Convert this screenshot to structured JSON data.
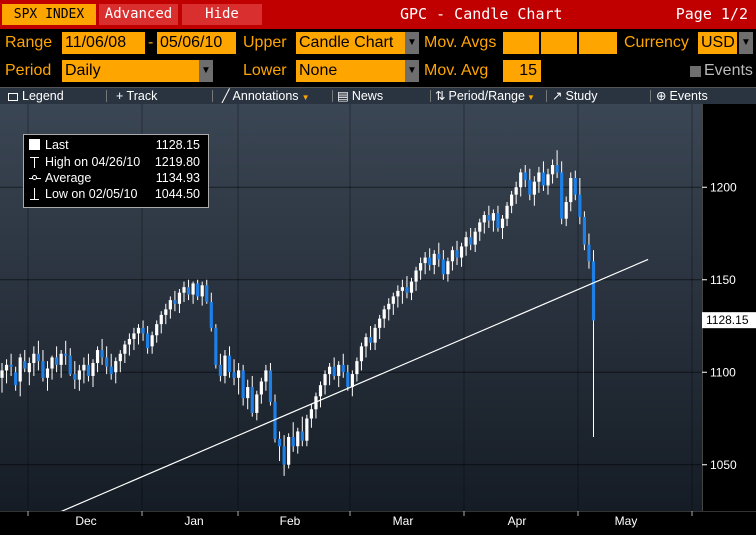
{
  "titlebar": {
    "ticker": "SPX INDEX",
    "advanced_label": "Advanced",
    "hide_label": "Hide",
    "chart_title": "GPC - Candle Chart",
    "page": "Page 1/2"
  },
  "settings": {
    "range_label": "Range",
    "range_start": "11/06/08",
    "range_dash": "-",
    "range_end": "05/06/10",
    "upper_label": "Upper",
    "upper_value": "Candle Chart",
    "mov_avgs_label": "Mov. Avgs",
    "currency_label": "Currency",
    "currency_value": "USD",
    "period_label": "Period",
    "period_value": "Daily",
    "lower_label": "Lower",
    "lower_value": "None",
    "mov_avg_label": "Mov. Avg",
    "mov_avg_value": "15",
    "events_label": "Events"
  },
  "toolbar": {
    "legend": "Legend",
    "track": "+ Track",
    "annotations": "Annotations",
    "news": "News",
    "period_range": "Period/Range",
    "study": "Study",
    "events": "Events"
  },
  "legend": {
    "last_label": "Last",
    "last_value": "1128.15",
    "high_label": "High on 04/26/10",
    "high_value": "1219.80",
    "avg_label": "Average",
    "avg_value": "1134.93",
    "low_label": "Low on 02/05/10",
    "low_value": "1044.50"
  },
  "colors": {
    "up_candle": "#ffffff",
    "down_candle": "#1e7fe6",
    "accent": "#ffa500",
    "titlebar": "#c00000"
  },
  "chart_data": {
    "type": "candlestick",
    "x_tick_labels": [
      "Dec",
      "Jan",
      "Feb",
      "Mar",
      "Apr",
      "May"
    ],
    "y_tick_labels": [
      "1050",
      "1100",
      "1150",
      "1200"
    ],
    "ylim": [
      1025,
      1245
    ],
    "last_price_label": "1128.15",
    "trendline": [
      [
        1,
        1011
      ],
      [
        143,
        1161
      ]
    ],
    "candles": [
      {
        "x": 1,
        "o": 1097,
        "h": 1105,
        "l": 1089,
        "c": 1101
      },
      {
        "x": 2,
        "o": 1101,
        "h": 1107,
        "l": 1094,
        "c": 1104
      },
      {
        "x": 3,
        "o": 1104,
        "h": 1110,
        "l": 1098,
        "c": 1103
      },
      {
        "x": 4,
        "o": 1100,
        "h": 1103,
        "l": 1090,
        "c": 1093
      },
      {
        "x": 5,
        "o": 1095,
        "h": 1110,
        "l": 1087,
        "c": 1108
      },
      {
        "x": 6,
        "o": 1106,
        "h": 1112,
        "l": 1100,
        "c": 1102
      },
      {
        "x": 7,
        "o": 1100,
        "h": 1108,
        "l": 1093,
        "c": 1105
      },
      {
        "x": 8,
        "o": 1105,
        "h": 1114,
        "l": 1098,
        "c": 1110
      },
      {
        "x": 9,
        "o": 1110,
        "h": 1117,
        "l": 1101,
        "c": 1106
      },
      {
        "x": 10,
        "o": 1106,
        "h": 1112,
        "l": 1095,
        "c": 1097
      },
      {
        "x": 11,
        "o": 1097,
        "h": 1106,
        "l": 1090,
        "c": 1102
      },
      {
        "x": 12,
        "o": 1102,
        "h": 1109,
        "l": 1096,
        "c": 1108
      },
      {
        "x": 13,
        "o": 1108,
        "h": 1114,
        "l": 1100,
        "c": 1104
      },
      {
        "x": 14,
        "o": 1104,
        "h": 1112,
        "l": 1097,
        "c": 1110
      },
      {
        "x": 15,
        "o": 1110,
        "h": 1117,
        "l": 1104,
        "c": 1109
      },
      {
        "x": 16,
        "o": 1109,
        "h": 1113,
        "l": 1098,
        "c": 1099
      },
      {
        "x": 17,
        "o": 1099,
        "h": 1106,
        "l": 1091,
        "c": 1096
      },
      {
        "x": 18,
        "o": 1096,
        "h": 1104,
        "l": 1090,
        "c": 1101
      },
      {
        "x": 19,
        "o": 1101,
        "h": 1108,
        "l": 1094,
        "c": 1104
      },
      {
        "x": 20,
        "o": 1104,
        "h": 1110,
        "l": 1095,
        "c": 1098
      },
      {
        "x": 21,
        "o": 1098,
        "h": 1107,
        "l": 1092,
        "c": 1105
      },
      {
        "x": 22,
        "o": 1105,
        "h": 1114,
        "l": 1100,
        "c": 1112
      },
      {
        "x": 23,
        "o": 1112,
        "h": 1118,
        "l": 1104,
        "c": 1108
      },
      {
        "x": 24,
        "o": 1108,
        "h": 1114,
        "l": 1099,
        "c": 1103
      },
      {
        "x": 25,
        "o": 1103,
        "h": 1110,
        "l": 1096,
        "c": 1099
      },
      {
        "x": 26,
        "o": 1100,
        "h": 1108,
        "l": 1094,
        "c": 1106
      },
      {
        "x": 27,
        "o": 1106,
        "h": 1112,
        "l": 1100,
        "c": 1110
      },
      {
        "x": 28,
        "o": 1110,
        "h": 1117,
        "l": 1105,
        "c": 1115
      },
      {
        "x": 29,
        "o": 1115,
        "h": 1121,
        "l": 1109,
        "c": 1118
      },
      {
        "x": 30,
        "o": 1118,
        "h": 1124,
        "l": 1112,
        "c": 1121
      },
      {
        "x": 31,
        "o": 1121,
        "h": 1126,
        "l": 1115,
        "c": 1124
      },
      {
        "x": 32,
        "o": 1124,
        "h": 1128,
        "l": 1117,
        "c": 1121
      },
      {
        "x": 33,
        "o": 1121,
        "h": 1125,
        "l": 1110,
        "c": 1113
      },
      {
        "x": 34,
        "o": 1114,
        "h": 1122,
        "l": 1110,
        "c": 1120
      },
      {
        "x": 35,
        "o": 1120,
        "h": 1128,
        "l": 1116,
        "c": 1126
      },
      {
        "x": 36,
        "o": 1126,
        "h": 1133,
        "l": 1121,
        "c": 1131
      },
      {
        "x": 37,
        "o": 1131,
        "h": 1137,
        "l": 1126,
        "c": 1134
      },
      {
        "x": 38,
        "o": 1134,
        "h": 1141,
        "l": 1129,
        "c": 1139
      },
      {
        "x": 39,
        "o": 1139,
        "h": 1144,
        "l": 1133,
        "c": 1137
      },
      {
        "x": 40,
        "o": 1137,
        "h": 1145,
        "l": 1132,
        "c": 1143
      },
      {
        "x": 41,
        "o": 1143,
        "h": 1149,
        "l": 1138,
        "c": 1146
      },
      {
        "x": 42,
        "o": 1146,
        "h": 1150,
        "l": 1139,
        "c": 1142
      },
      {
        "x": 43,
        "o": 1142,
        "h": 1149,
        "l": 1137,
        "c": 1148
      },
      {
        "x": 44,
        "o": 1148,
        "h": 1150,
        "l": 1139,
        "c": 1141
      },
      {
        "x": 45,
        "o": 1141,
        "h": 1149,
        "l": 1136,
        "c": 1147
      },
      {
        "x": 46,
        "o": 1147,
        "h": 1150,
        "l": 1137,
        "c": 1138
      },
      {
        "x": 47,
        "o": 1138,
        "h": 1143,
        "l": 1122,
        "c": 1124
      },
      {
        "x": 48,
        "o": 1124,
        "h": 1126,
        "l": 1102,
        "c": 1104
      },
      {
        "x": 49,
        "o": 1104,
        "h": 1110,
        "l": 1095,
        "c": 1098
      },
      {
        "x": 50,
        "o": 1098,
        "h": 1112,
        "l": 1094,
        "c": 1109
      },
      {
        "x": 51,
        "o": 1109,
        "h": 1114,
        "l": 1097,
        "c": 1100
      },
      {
        "x": 52,
        "o": 1100,
        "h": 1107,
        "l": 1093,
        "c": 1097
      },
      {
        "x": 53,
        "o": 1097,
        "h": 1105,
        "l": 1088,
        "c": 1101
      },
      {
        "x": 54,
        "o": 1101,
        "h": 1104,
        "l": 1082,
        "c": 1086
      },
      {
        "x": 55,
        "o": 1086,
        "h": 1096,
        "l": 1080,
        "c": 1092
      },
      {
        "x": 56,
        "o": 1092,
        "h": 1098,
        "l": 1076,
        "c": 1078
      },
      {
        "x": 57,
        "o": 1078,
        "h": 1090,
        "l": 1074,
        "c": 1088
      },
      {
        "x": 58,
        "o": 1088,
        "h": 1097,
        "l": 1083,
        "c": 1095
      },
      {
        "x": 59,
        "o": 1095,
        "h": 1104,
        "l": 1090,
        "c": 1101
      },
      {
        "x": 60,
        "o": 1101,
        "h": 1105,
        "l": 1082,
        "c": 1084
      },
      {
        "x": 61,
        "o": 1084,
        "h": 1088,
        "l": 1062,
        "c": 1064
      },
      {
        "x": 62,
        "o": 1064,
        "h": 1068,
        "l": 1052,
        "c": 1060
      },
      {
        "x": 63,
        "o": 1060,
        "h": 1066,
        "l": 1044,
        "c": 1050
      },
      {
        "x": 64,
        "o": 1050,
        "h": 1067,
        "l": 1048,
        "c": 1065
      },
      {
        "x": 65,
        "o": 1065,
        "h": 1073,
        "l": 1057,
        "c": 1060
      },
      {
        "x": 66,
        "o": 1060,
        "h": 1070,
        "l": 1056,
        "c": 1068
      },
      {
        "x": 67,
        "o": 1068,
        "h": 1076,
        "l": 1060,
        "c": 1063
      },
      {
        "x": 68,
        "o": 1063,
        "h": 1077,
        "l": 1060,
        "c": 1075
      },
      {
        "x": 69,
        "o": 1075,
        "h": 1083,
        "l": 1070,
        "c": 1080
      },
      {
        "x": 70,
        "o": 1080,
        "h": 1089,
        "l": 1075,
        "c": 1087
      },
      {
        "x": 71,
        "o": 1087,
        "h": 1095,
        "l": 1081,
        "c": 1093
      },
      {
        "x": 72,
        "o": 1093,
        "h": 1101,
        "l": 1088,
        "c": 1099
      },
      {
        "x": 73,
        "o": 1099,
        "h": 1105,
        "l": 1093,
        "c": 1103
      },
      {
        "x": 74,
        "o": 1103,
        "h": 1108,
        "l": 1096,
        "c": 1098
      },
      {
        "x": 75,
        "o": 1098,
        "h": 1106,
        "l": 1092,
        "c": 1104
      },
      {
        "x": 76,
        "o": 1104,
        "h": 1110,
        "l": 1097,
        "c": 1100
      },
      {
        "x": 77,
        "o": 1100,
        "h": 1104,
        "l": 1090,
        "c": 1092
      },
      {
        "x": 78,
        "o": 1092,
        "h": 1101,
        "l": 1087,
        "c": 1099
      },
      {
        "x": 79,
        "o": 1099,
        "h": 1108,
        "l": 1095,
        "c": 1106
      },
      {
        "x": 80,
        "o": 1106,
        "h": 1116,
        "l": 1101,
        "c": 1114
      },
      {
        "x": 81,
        "o": 1114,
        "h": 1121,
        "l": 1108,
        "c": 1119
      },
      {
        "x": 82,
        "o": 1119,
        "h": 1125,
        "l": 1112,
        "c": 1116
      },
      {
        "x": 83,
        "o": 1116,
        "h": 1126,
        "l": 1112,
        "c": 1124
      },
      {
        "x": 84,
        "o": 1124,
        "h": 1131,
        "l": 1118,
        "c": 1129
      },
      {
        "x": 85,
        "o": 1129,
        "h": 1136,
        "l": 1124,
        "c": 1134
      },
      {
        "x": 86,
        "o": 1134,
        "h": 1140,
        "l": 1128,
        "c": 1137
      },
      {
        "x": 87,
        "o": 1137,
        "h": 1143,
        "l": 1131,
        "c": 1141
      },
      {
        "x": 88,
        "o": 1141,
        "h": 1147,
        "l": 1135,
        "c": 1144
      },
      {
        "x": 89,
        "o": 1144,
        "h": 1150,
        "l": 1137,
        "c": 1146
      },
      {
        "x": 90,
        "o": 1146,
        "h": 1152,
        "l": 1140,
        "c": 1143
      },
      {
        "x": 91,
        "o": 1143,
        "h": 1151,
        "l": 1139,
        "c": 1149
      },
      {
        "x": 92,
        "o": 1149,
        "h": 1157,
        "l": 1144,
        "c": 1155
      },
      {
        "x": 93,
        "o": 1155,
        "h": 1162,
        "l": 1150,
        "c": 1159
      },
      {
        "x": 94,
        "o": 1159,
        "h": 1165,
        "l": 1153,
        "c": 1162
      },
      {
        "x": 95,
        "o": 1162,
        "h": 1167,
        "l": 1155,
        "c": 1158
      },
      {
        "x": 96,
        "o": 1158,
        "h": 1166,
        "l": 1153,
        "c": 1164
      },
      {
        "x": 97,
        "o": 1164,
        "h": 1170,
        "l": 1157,
        "c": 1161
      },
      {
        "x": 98,
        "o": 1161,
        "h": 1166,
        "l": 1150,
        "c": 1153
      },
      {
        "x": 99,
        "o": 1153,
        "h": 1162,
        "l": 1149,
        "c": 1160
      },
      {
        "x": 100,
        "o": 1160,
        "h": 1168,
        "l": 1155,
        "c": 1166
      },
      {
        "x": 101,
        "o": 1166,
        "h": 1171,
        "l": 1158,
        "c": 1162
      },
      {
        "x": 102,
        "o": 1162,
        "h": 1170,
        "l": 1157,
        "c": 1168
      },
      {
        "x": 103,
        "o": 1168,
        "h": 1176,
        "l": 1163,
        "c": 1173
      },
      {
        "x": 104,
        "o": 1173,
        "h": 1178,
        "l": 1166,
        "c": 1169
      },
      {
        "x": 105,
        "o": 1169,
        "h": 1178,
        "l": 1165,
        "c": 1176
      },
      {
        "x": 106,
        "o": 1176,
        "h": 1183,
        "l": 1171,
        "c": 1181
      },
      {
        "x": 107,
        "o": 1181,
        "h": 1187,
        "l": 1175,
        "c": 1185
      },
      {
        "x": 108,
        "o": 1185,
        "h": 1190,
        "l": 1178,
        "c": 1182
      },
      {
        "x": 109,
        "o": 1182,
        "h": 1188,
        "l": 1176,
        "c": 1186
      },
      {
        "x": 110,
        "o": 1186,
        "h": 1190,
        "l": 1176,
        "c": 1178
      },
      {
        "x": 111,
        "o": 1178,
        "h": 1185,
        "l": 1172,
        "c": 1183
      },
      {
        "x": 112,
        "o": 1183,
        "h": 1192,
        "l": 1179,
        "c": 1190
      },
      {
        "x": 113,
        "o": 1190,
        "h": 1198,
        "l": 1186,
        "c": 1196
      },
      {
        "x": 114,
        "o": 1196,
        "h": 1203,
        "l": 1191,
        "c": 1200
      },
      {
        "x": 115,
        "o": 1200,
        "h": 1210,
        "l": 1195,
        "c": 1208
      },
      {
        "x": 116,
        "o": 1208,
        "h": 1212,
        "l": 1200,
        "c": 1204
      },
      {
        "x": 117,
        "o": 1204,
        "h": 1210,
        "l": 1193,
        "c": 1196
      },
      {
        "x": 118,
        "o": 1196,
        "h": 1206,
        "l": 1190,
        "c": 1203
      },
      {
        "x": 119,
        "o": 1203,
        "h": 1211,
        "l": 1197,
        "c": 1208
      },
      {
        "x": 120,
        "o": 1208,
        "h": 1214,
        "l": 1198,
        "c": 1201
      },
      {
        "x": 121,
        "o": 1201,
        "h": 1210,
        "l": 1196,
        "c": 1207
      },
      {
        "x": 122,
        "o": 1207,
        "h": 1215,
        "l": 1202,
        "c": 1212
      },
      {
        "x": 123,
        "o": 1212,
        "h": 1220,
        "l": 1205,
        "c": 1208
      },
      {
        "x": 124,
        "o": 1208,
        "h": 1214,
        "l": 1180,
        "c": 1183
      },
      {
        "x": 125,
        "o": 1183,
        "h": 1195,
        "l": 1179,
        "c": 1192
      },
      {
        "x": 126,
        "o": 1192,
        "h": 1208,
        "l": 1187,
        "c": 1205
      },
      {
        "x": 127,
        "o": 1205,
        "h": 1209,
        "l": 1193,
        "c": 1196
      },
      {
        "x": 128,
        "o": 1196,
        "h": 1205,
        "l": 1180,
        "c": 1184
      },
      {
        "x": 129,
        "o": 1184,
        "h": 1187,
        "l": 1166,
        "c": 1169
      },
      {
        "x": 130,
        "o": 1169,
        "h": 1175,
        "l": 1156,
        "c": 1160
      },
      {
        "x": 131,
        "o": 1160,
        "h": 1166,
        "l": 1065,
        "c": 1128
      }
    ]
  }
}
